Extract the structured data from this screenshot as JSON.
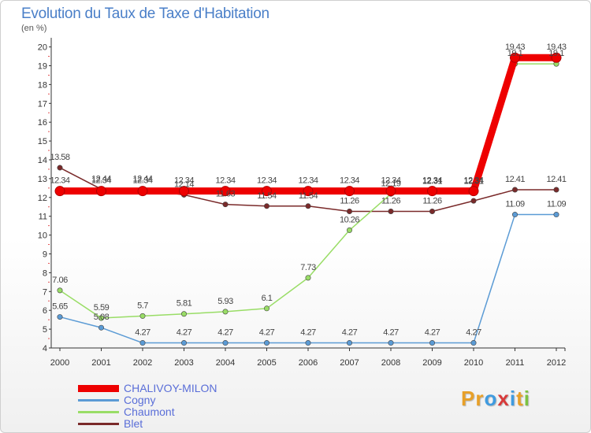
{
  "header": {
    "title": "Evolution du Taux de Taxe d'Habitation",
    "unit": "(en %)"
  },
  "chart_data": {
    "type": "line",
    "title": "Evolution du Taux de Taxe d'Habitation",
    "ylabel": "(en %)",
    "xlabel": "",
    "ylim": [
      4,
      20
    ],
    "yticks": [
      "4",
      "5",
      "6",
      "7",
      "8",
      "9",
      "10",
      "11",
      "12",
      "13",
      "14",
      "15",
      "16",
      "17",
      "18",
      "19",
      "20"
    ],
    "categories": [
      "2000",
      "2001",
      "2002",
      "2003",
      "2004",
      "2005",
      "2006",
      "2007",
      "2008",
      "2009",
      "2010",
      "2011",
      "2012"
    ],
    "series": [
      {
        "name": "Blet",
        "color": "#7a2a2a",
        "values": [
          13.58,
          12.44,
          12.44,
          12.14,
          11.63,
          11.54,
          11.54,
          11.26,
          11.26,
          11.26,
          11.82,
          12.41,
          12.41
        ],
        "labels": [
          "13.58",
          "12.44",
          "12.44",
          "12.14",
          "11.63",
          "11.54",
          "11.54",
          "11.26",
          "11.26",
          "11.26",
          "",
          "12.41",
          "12.41"
        ]
      },
      {
        "name": "Cogny",
        "color": "#5b9bd5",
        "values": [
          5.65,
          5.08,
          4.27,
          4.27,
          4.27,
          4.27,
          4.27,
          4.27,
          4.27,
          4.27,
          4.27,
          11.09,
          11.09
        ],
        "labels": [
          "5.65",
          "5.08",
          "4.27",
          "4.27",
          "4.27",
          "4.27",
          "4.27",
          "4.27",
          "4.27",
          "4.27",
          "4.27",
          "11.09",
          "11.09"
        ]
      },
      {
        "name": "Chaumont",
        "color": "#99dd66",
        "values": [
          7.06,
          5.59,
          5.7,
          5.81,
          5.93,
          6.1,
          7.73,
          10.26,
          12.19,
          12.31,
          12.31,
          19.1,
          19.1
        ],
        "labels": [
          "7.06",
          "5.59",
          "5.7",
          "5.81",
          "5.93",
          "6.1",
          "7.73",
          "10.26",
          "12.19",
          "12.31",
          "12.31",
          "19.1",
          "19.1"
        ]
      },
      {
        "name": "CHALIVOY-MILON",
        "color": "#ee0000",
        "values": [
          12.34,
          12.34,
          12.34,
          12.34,
          12.34,
          12.34,
          12.34,
          12.34,
          12.34,
          12.34,
          12.34,
          19.43,
          19.43
        ],
        "labels": [
          "12.34",
          "12.34",
          "12.34",
          "12.34",
          "12.34",
          "12.34",
          "12.34",
          "12.34",
          "12.34",
          "12.34",
          "12.34",
          "19.43",
          "19.43"
        ]
      }
    ],
    "legend_order": [
      "CHALIVOY-MILON",
      "Cogny",
      "Chaumont",
      "Blet"
    ],
    "legend_position": "bottom-left",
    "grid": false
  },
  "logo": {
    "text": "Proxiti",
    "letters": [
      "P",
      "r",
      "o",
      "x",
      "i",
      "t",
      "i"
    ],
    "colors": [
      "#e8a028",
      "#e8a028",
      "#3f9be0",
      "#d83a3a",
      "#3f9be0",
      "#e8a028",
      "#7cc242"
    ]
  }
}
